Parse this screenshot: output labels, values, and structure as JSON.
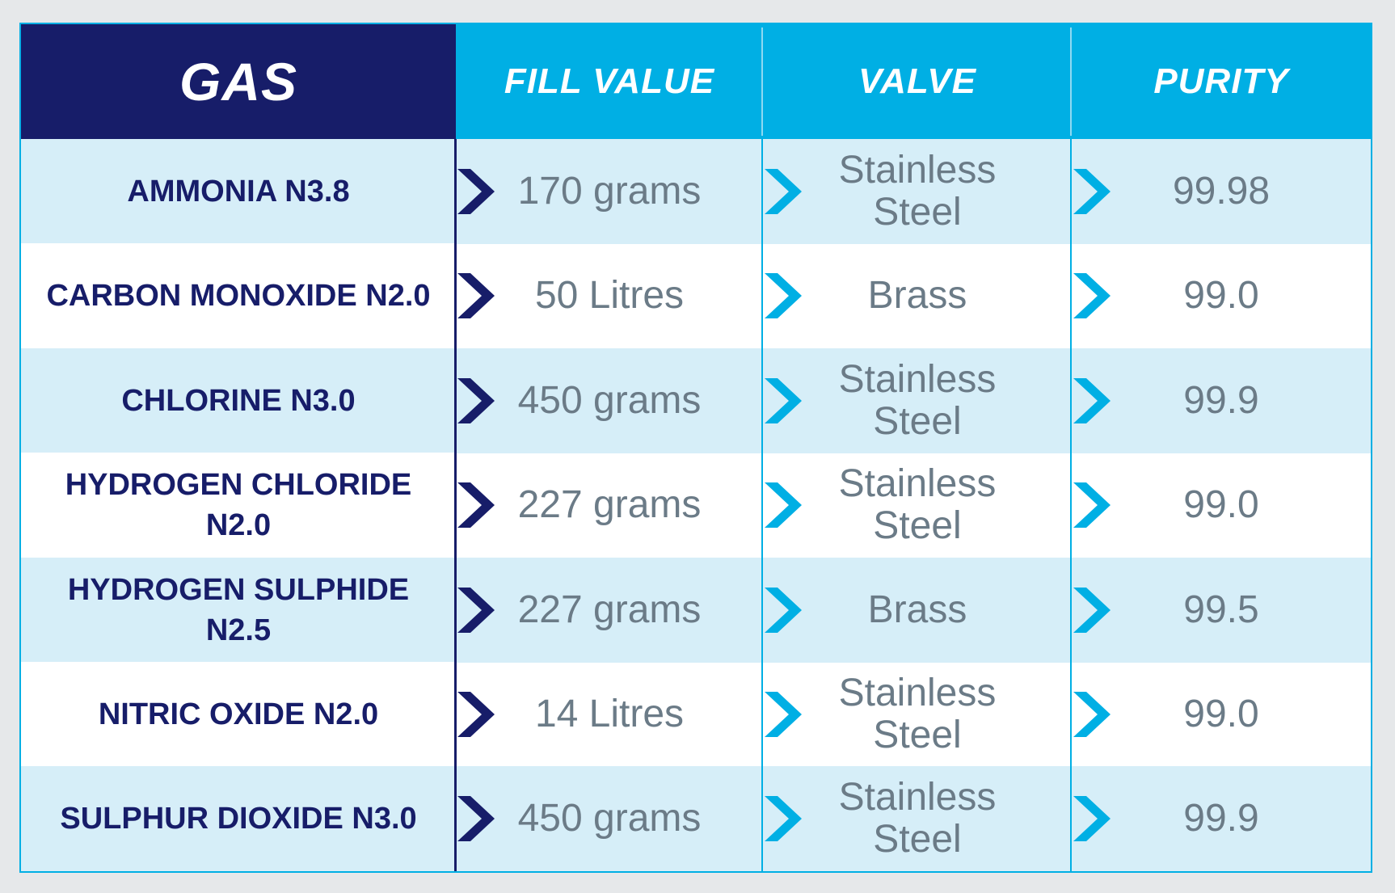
{
  "headers": {
    "gas": "GAS",
    "fill_value": "FILL VALUE",
    "valve": "VALVE",
    "purity": "PURITY"
  },
  "rows": [
    {
      "gas": "AMMONIA N3.8",
      "fill_value": "170 grams",
      "valve": "Stainless Steel",
      "purity": "99.98"
    },
    {
      "gas": "CARBON MONOXIDE N2.0",
      "fill_value": "50 Litres",
      "valve": "Brass",
      "purity": "99.0"
    },
    {
      "gas": "CHLORINE N3.0",
      "fill_value": "450 grams",
      "valve": "Stainless Steel",
      "purity": "99.9"
    },
    {
      "gas": "HYDROGEN CHLORIDE N2.0",
      "fill_value": "227 grams",
      "valve": "Stainless Steel",
      "purity": "99.0"
    },
    {
      "gas": "HYDROGEN SULPHIDE N2.5",
      "fill_value": "227 grams",
      "valve": "Brass",
      "purity": "99.5"
    },
    {
      "gas": "NITRIC OXIDE N2.0",
      "fill_value": "14 Litres",
      "valve": "Stainless Steel",
      "purity": "99.0"
    },
    {
      "gas": "SULPHUR DIOXIDE N3.0",
      "fill_value": "450 grams",
      "valve": "Stainless Steel",
      "purity": "99.9"
    }
  ],
  "colors": {
    "navy": "#171d69",
    "cyan": "#00afe4",
    "row_shade": "#d6eef8",
    "value_text": "#6b7b87"
  },
  "icons": {
    "gas_separator": "chevron-right-icon",
    "value_separator": "chevron-right-icon"
  }
}
